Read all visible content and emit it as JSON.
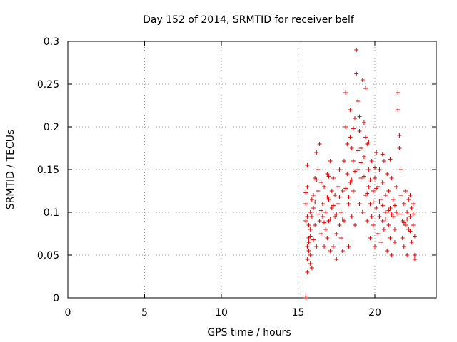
{
  "chart_data": {
    "type": "scatter",
    "title": "Day 152 of 2014, SRMTID for receiver belf",
    "xlabel": "GPS time / hours",
    "ylabel": "SRMTID / TECUs",
    "xlim": [
      0,
      24.0
    ],
    "ylim": [
      0,
      0.3
    ],
    "x_ticks": [
      "0",
      "5",
      "10",
      "15",
      "20"
    ],
    "y_ticks": [
      "0",
      "0.05",
      "0.1",
      "0.15",
      "0.2",
      "0.25",
      "0.3"
    ],
    "grid": true,
    "marker": "plus",
    "color": "#e00000",
    "series": [
      {
        "name": "",
        "points": [
          [
            15.5,
            0.0
          ],
          [
            15.5,
            0.002
          ],
          [
            15.5,
            0.123
          ],
          [
            15.5,
            0.11
          ],
          [
            15.5,
            0.09
          ],
          [
            15.6,
            0.06
          ],
          [
            15.6,
            0.045
          ],
          [
            15.6,
            0.03
          ],
          [
            15.6,
            0.155
          ],
          [
            15.6,
            0.13
          ],
          [
            15.7,
            0.07
          ],
          [
            15.7,
            0.055
          ],
          [
            15.7,
            0.065
          ],
          [
            15.8,
            0.08
          ],
          [
            15.8,
            0.05
          ],
          [
            15.8,
            0.04
          ],
          [
            15.8,
            0.1
          ],
          [
            15.9,
            0.035
          ],
          [
            15.9,
            0.115
          ],
          [
            15.9,
            0.095
          ],
          [
            16.0,
            0.12
          ],
          [
            16.0,
            0.105
          ],
          [
            16.1,
            0.14
          ],
          [
            16.1,
            0.085
          ],
          [
            16.2,
            0.17
          ],
          [
            16.2,
            0.06
          ],
          [
            16.3,
            0.15
          ],
          [
            16.3,
            0.125
          ],
          [
            16.4,
            0.18
          ],
          [
            16.4,
            0.09
          ],
          [
            16.5,
            0.135
          ],
          [
            16.5,
            0.075
          ],
          [
            16.6,
            0.11
          ],
          [
            16.6,
            0.095
          ],
          [
            16.7,
            0.06
          ],
          [
            16.7,
            0.13
          ],
          [
            16.8,
            0.1
          ],
          [
            16.8,
            0.08
          ],
          [
            16.9,
            0.145
          ],
          [
            16.9,
            0.07
          ],
          [
            17.0,
            0.115
          ],
          [
            17.0,
            0.09
          ],
          [
            17.1,
            0.16
          ],
          [
            17.1,
            0.055
          ],
          [
            17.2,
            0.125
          ],
          [
            17.2,
            0.105
          ],
          [
            17.3,
            0.14
          ],
          [
            17.3,
            0.06
          ],
          [
            17.4,
            0.095
          ],
          [
            17.4,
            0.12
          ],
          [
            17.5,
            0.075
          ],
          [
            17.5,
            0.045
          ],
          [
            17.6,
            0.11
          ],
          [
            17.6,
            0.13
          ],
          [
            17.7,
            0.085
          ],
          [
            17.7,
            0.15
          ],
          [
            17.8,
            0.07
          ],
          [
            17.8,
            0.1
          ],
          [
            17.9,
            0.055
          ],
          [
            17.9,
            0.125
          ],
          [
            18.0,
            0.09
          ],
          [
            18.0,
            0.16
          ],
          [
            18.1,
            0.24
          ],
          [
            18.1,
            0.2
          ],
          [
            18.2,
            0.145
          ],
          [
            18.2,
            0.18
          ],
          [
            18.3,
            0.11
          ],
          [
            18.3,
            0.06
          ],
          [
            18.4,
            0.135
          ],
          [
            18.4,
            0.22
          ],
          [
            18.5,
            0.175
          ],
          [
            18.5,
            0.095
          ],
          [
            18.6,
            0.16
          ],
          [
            18.6,
            0.125
          ],
          [
            18.7,
            0.21
          ],
          [
            18.7,
            0.085
          ],
          [
            18.8,
            0.29
          ],
          [
            18.8,
            0.262
          ],
          [
            18.9,
            0.23
          ],
          [
            18.9,
            0.15
          ],
          [
            19.0,
            0.195
          ],
          [
            19.0,
            0.11
          ],
          [
            19.1,
            0.14
          ],
          [
            19.1,
            0.175
          ],
          [
            19.2,
            0.255
          ],
          [
            19.2,
            0.1
          ],
          [
            19.3,
            0.165
          ],
          [
            19.3,
            0.205
          ],
          [
            19.4,
            0.12
          ],
          [
            19.4,
            0.245
          ],
          [
            19.5,
            0.18
          ],
          [
            19.5,
            0.09
          ],
          [
            19.6,
            0.15
          ],
          [
            19.6,
            0.13
          ],
          [
            19.7,
            0.11
          ],
          [
            19.7,
            0.07
          ],
          [
            19.8,
            0.095
          ],
          [
            19.8,
            0.16
          ],
          [
            19.9,
            0.125
          ],
          [
            19.9,
            0.085
          ],
          [
            20.0,
            0.14
          ],
          [
            20.0,
            0.06
          ],
          [
            20.1,
            0.105
          ],
          [
            20.1,
            0.17
          ],
          [
            20.2,
            0.075
          ],
          [
            20.2,
            0.13
          ],
          [
            20.3,
            0.095
          ],
          [
            20.3,
            0.15
          ],
          [
            20.4,
            0.115
          ],
          [
            20.4,
            0.065
          ],
          [
            20.5,
            0.135
          ],
          [
            20.5,
            0.09
          ],
          [
            20.6,
            0.16
          ],
          [
            20.6,
            0.08
          ],
          [
            20.7,
            0.12
          ],
          [
            20.7,
            0.1
          ],
          [
            20.8,
            0.055
          ],
          [
            20.8,
            0.145
          ],
          [
            20.9,
            0.085
          ],
          [
            20.9,
            0.125
          ],
          [
            21.0,
            0.105
          ],
          [
            21.0,
            0.07
          ],
          [
            21.1,
            0.05
          ],
          [
            21.1,
            0.14
          ],
          [
            21.2,
            0.095
          ],
          [
            21.2,
            0.115
          ],
          [
            21.3,
            0.08
          ],
          [
            21.3,
            0.065
          ],
          [
            21.4,
            0.13
          ],
          [
            21.4,
            0.1
          ],
          [
            21.5,
            0.24
          ],
          [
            21.5,
            0.22
          ],
          [
            21.6,
            0.19
          ],
          [
            21.6,
            0.175
          ],
          [
            21.7,
            0.15
          ],
          [
            21.7,
            0.12
          ],
          [
            21.8,
            0.09
          ],
          [
            21.8,
            0.07
          ],
          [
            21.9,
            0.11
          ],
          [
            21.9,
            0.06
          ],
          [
            22.0,
            0.085
          ],
          [
            22.0,
            0.125
          ],
          [
            22.1,
            0.1
          ],
          [
            22.1,
            0.05
          ],
          [
            22.2,
            0.115
          ],
          [
            22.2,
            0.08
          ],
          [
            22.3,
            0.095
          ],
          [
            22.3,
            0.12
          ],
          [
            22.4,
            0.105
          ],
          [
            22.4,
            0.065
          ],
          [
            22.5,
            0.085
          ],
          [
            22.5,
            0.11
          ],
          [
            22.6,
            0.05
          ],
          [
            22.6,
            0.045
          ],
          [
            15.6,
            0.095
          ],
          [
            15.7,
            0.085
          ],
          [
            15.8,
            0.072
          ],
          [
            16.0,
            0.068
          ],
          [
            16.1,
            0.112
          ],
          [
            16.3,
            0.098
          ],
          [
            16.5,
            0.102
          ],
          [
            16.7,
            0.088
          ],
          [
            16.9,
            0.118
          ],
          [
            17.1,
            0.092
          ],
          [
            17.3,
            0.108
          ],
          [
            17.5,
            0.098
          ],
          [
            17.7,
            0.118
          ],
          [
            17.9,
            0.092
          ],
          [
            18.1,
            0.128
          ],
          [
            18.3,
            0.118
          ],
          [
            18.5,
            0.138
          ],
          [
            18.7,
            0.148
          ],
          [
            18.9,
            0.172
          ],
          [
            19.1,
            0.158
          ],
          [
            19.3,
            0.142
          ],
          [
            19.5,
            0.122
          ],
          [
            19.7,
            0.138
          ],
          [
            19.9,
            0.112
          ],
          [
            20.1,
            0.128
          ],
          [
            20.3,
            0.112
          ],
          [
            20.5,
            0.108
          ],
          [
            20.7,
            0.092
          ],
          [
            20.9,
            0.102
          ],
          [
            21.1,
            0.098
          ],
          [
            21.3,
            0.108
          ],
          [
            21.5,
            0.098
          ],
          [
            21.7,
            0.098
          ],
          [
            21.9,
            0.088
          ],
          [
            22.1,
            0.092
          ],
          [
            22.3,
            0.078
          ],
          [
            22.5,
            0.098
          ],
          [
            22.6,
            0.072
          ],
          [
            18.4,
            0.188
          ],
          [
            19.0,
            0.212
          ],
          [
            19.4,
            0.188
          ],
          [
            19.6,
            0.182
          ],
          [
            20.5,
            0.168
          ],
          [
            21.0,
            0.162
          ],
          [
            20.0,
            0.152
          ],
          [
            18.6,
            0.198
          ],
          [
            17.0,
            0.142
          ],
          [
            16.2,
            0.138
          ]
        ]
      }
    ]
  }
}
